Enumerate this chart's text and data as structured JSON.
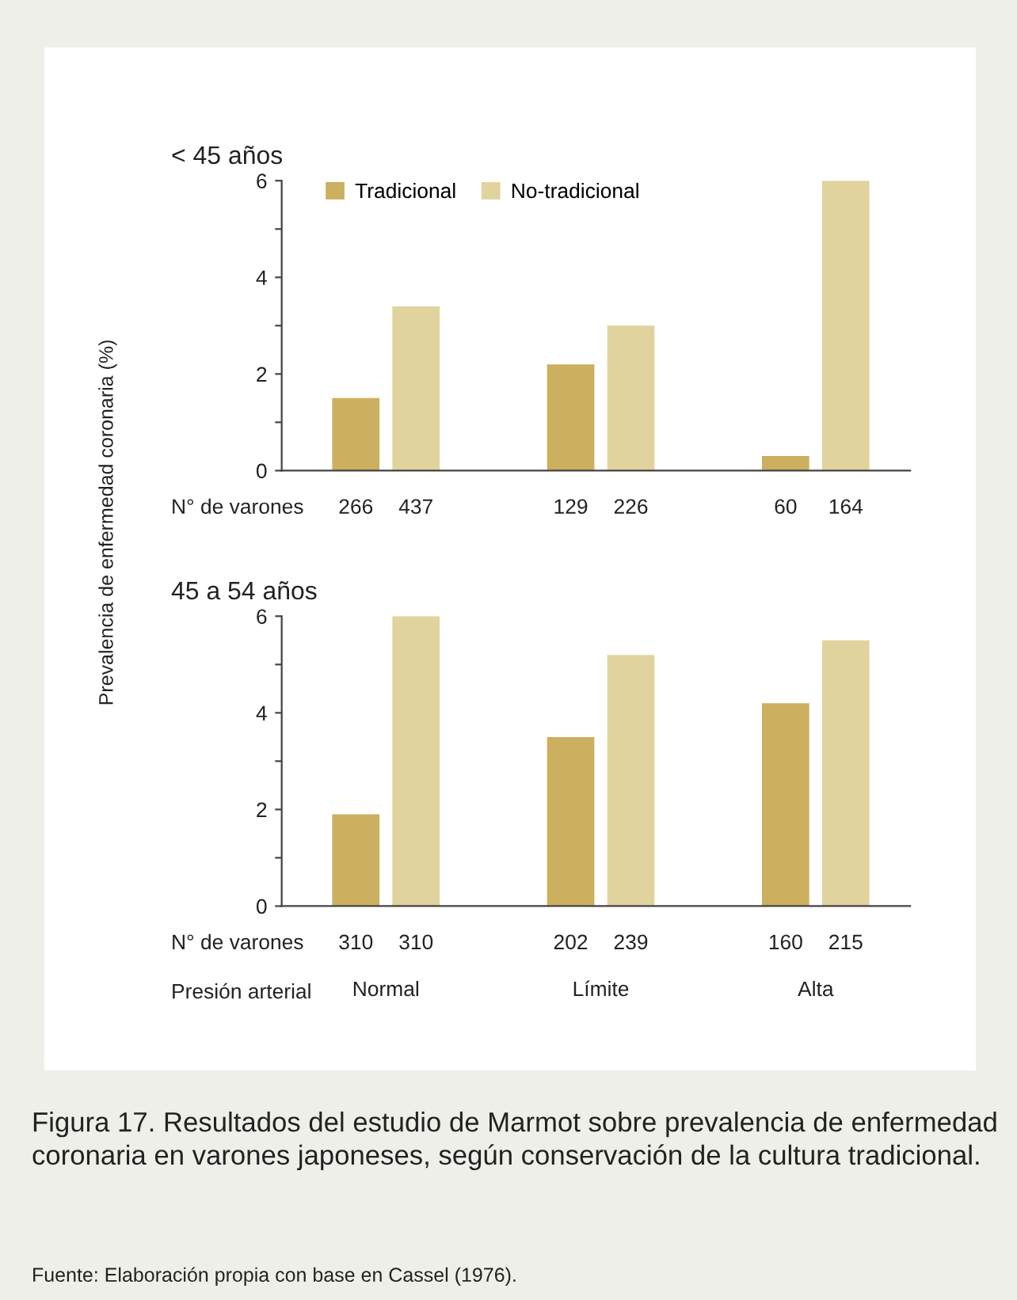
{
  "chart_data": [
    {
      "type": "bar",
      "title": "< 45 años",
      "ylabel": "Prevalencia de enfermedad coronaria (%)",
      "categories": [
        null,
        null,
        null
      ],
      "series": [
        {
          "name": "Tradicional",
          "color": "#ccaf5f",
          "values": [
            1.5,
            2.2,
            0.3
          ]
        },
        {
          "name": "No-tradicional",
          "color": "#e0d39e",
          "values": [
            3.4,
            3.0,
            6.0
          ]
        }
      ],
      "ylim": [
        0,
        6
      ],
      "yticks": [
        0,
        {
          "value": 1,
          "label": null
        },
        2,
        {
          "value": 3,
          "label": null
        },
        4,
        {
          "value": 5,
          "label": null
        },
        6
      ],
      "tick_labels": "y",
      "legend": "top left",
      "grid": false,
      "annotations": [
        "N° de varones",
        "266",
        "437",
        "129",
        "226",
        "60",
        "164"
      ]
    },
    {
      "type": "bar",
      "title": "45 a 54 años",
      "xlabel": "Presión arterial",
      "categories": [
        "Normal",
        "Límite",
        "Alta"
      ],
      "series": [
        {
          "color": "#ccaf5f",
          "values": [
            1.9,
            3.5,
            4.2
          ]
        },
        {
          "color": "#e0d39e",
          "values": [
            6.0,
            5.2,
            5.5
          ]
        }
      ],
      "ylim": [
        0,
        6
      ],
      "yticks": [
        0,
        {
          "value": 1,
          "label": null
        },
        2,
        {
          "value": 3,
          "label": null
        },
        4,
        {
          "value": 5,
          "label": null
        },
        6
      ],
      "grid": false,
      "annotations": [
        "N° de varones",
        "310",
        "310",
        "202",
        "239",
        "160",
        "215",
        "Figura 17. Resultados del estudio de Marmot sobre prevalencia de enfermedad coronaria en varones japoneses, según conservación de la cultura tradicional.",
        "Fuente: Elaboración propia con base en Cassel (1976)."
      ]
    }
  ]
}
